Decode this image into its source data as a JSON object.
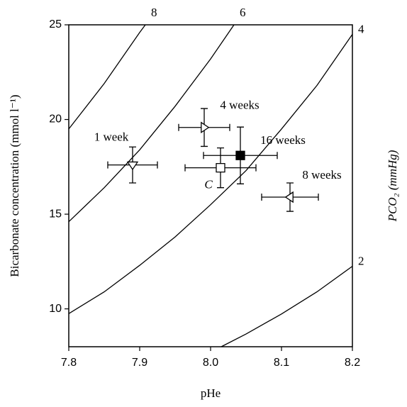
{
  "chart_data": {
    "type": "scatter",
    "xlabel": "pHe",
    "ylabel": "Bicarbonate concentration (mmol l⁻¹)",
    "y2label": "PCO₂ (mmHg)",
    "xlim": [
      7.8,
      8.2
    ],
    "ylim": [
      8,
      25
    ],
    "xticks": [
      7.8,
      7.9,
      {
        "value": 8,
        "label": "8.0"
      },
      8.1,
      8.2
    ],
    "yticks": [
      10,
      15,
      20,
      25
    ],
    "grid": false,
    "color": "#000000",
    "isopleths": [
      {
        "name": "8",
        "x": [
          7.8,
          7.85,
          7.9,
          7.908
        ],
        "values": [
          19.5,
          21.9,
          24.6,
          25.0
        ]
      },
      {
        "name": "6",
        "x": [
          7.8,
          7.85,
          7.9,
          7.95,
          8.0,
          8.033
        ],
        "values": [
          14.6,
          16.4,
          18.4,
          20.7,
          23.2,
          25.0
        ]
      },
      {
        "name": "4",
        "x": [
          7.8,
          7.85,
          7.9,
          7.95,
          8.0,
          8.05,
          8.1,
          8.15,
          8.2
        ],
        "values": [
          9.75,
          10.9,
          12.3,
          13.8,
          15.5,
          17.3,
          19.5,
          21.8,
          24.5
        ]
      },
      {
        "name": "2",
        "x": [
          8.015,
          8.05,
          8.1,
          8.15,
          8.2
        ],
        "values": [
          8.0,
          8.67,
          9.73,
          10.9,
          12.25
        ]
      }
    ],
    "points": [
      {
        "name": "1 week",
        "marker": "triangle-down",
        "filled": false,
        "x": 7.89,
        "y": 17.6,
        "xerr": 0.035,
        "yerr": 0.95
      },
      {
        "name": "4 weeks",
        "marker": "triangle-right",
        "filled": false,
        "x": 7.991,
        "y": 19.58,
        "xerr": 0.036,
        "yerr": 1.0
      },
      {
        "name": "16 weeks",
        "marker": "square",
        "filled": true,
        "x": 8.042,
        "y": 18.1,
        "xerr": 0.052,
        "yerr": 1.5
      },
      {
        "name": "C",
        "marker": "square",
        "filled": false,
        "x": 8.014,
        "y": 17.45,
        "xerr": 0.05,
        "yerr": 1.05
      },
      {
        "name": "8 weeks",
        "marker": "triangle-left",
        "filled": false,
        "x": 8.112,
        "y": 15.9,
        "xerr": 0.04,
        "yerr": 0.75
      }
    ]
  }
}
